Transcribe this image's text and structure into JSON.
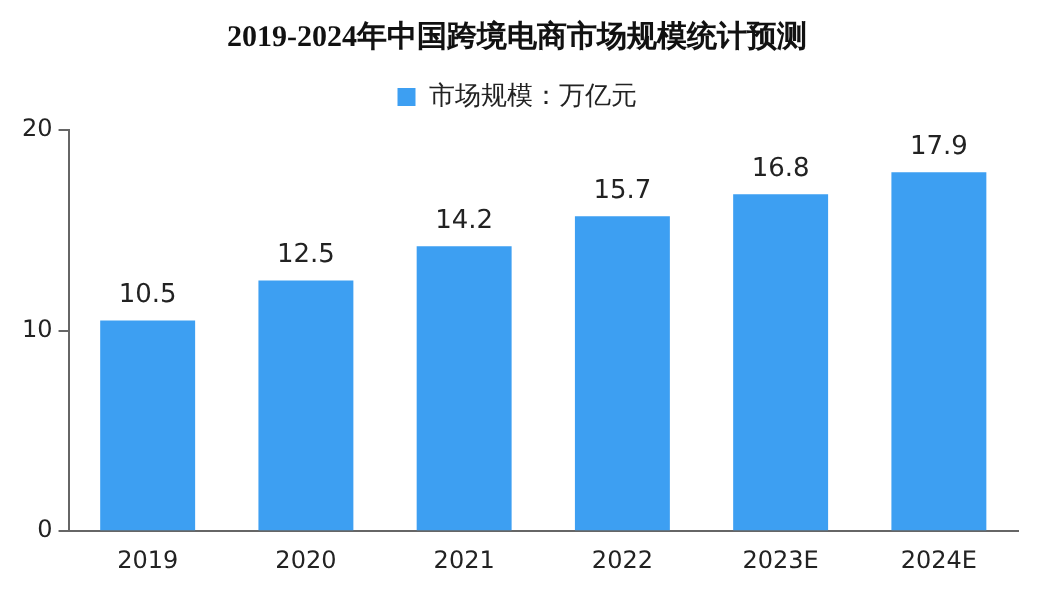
{
  "chart_data": {
    "type": "bar",
    "title": "2019-2024年中国跨境电商市场规模统计预测",
    "categories": [
      "2019",
      "2020",
      "2021",
      "2022",
      "2023E",
      "2024E"
    ],
    "series": [
      {
        "name": "市场规模：万亿元",
        "color": "#3d9ff2",
        "values": [
          10.5,
          12.5,
          14.2,
          15.7,
          16.8,
          17.9
        ]
      }
    ],
    "ylim": [
      0,
      20
    ],
    "yticks": [
      0,
      10,
      20
    ],
    "grid": false,
    "legend": "top",
    "data_labels": true
  }
}
